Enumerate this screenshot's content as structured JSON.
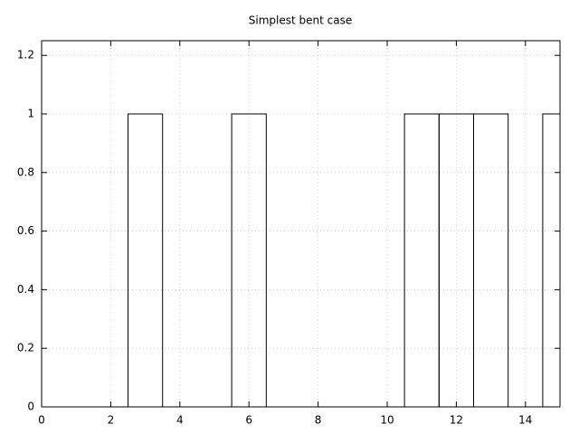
{
  "chart_data": {
    "type": "bar",
    "title": "Simplest bent case",
    "x": [
      3,
      6,
      11,
      12,
      13,
      15
    ],
    "values": [
      1,
      1,
      1,
      1,
      1,
      1
    ],
    "bar_width": 1,
    "color": "#000000",
    "xlim": [
      0,
      15
    ],
    "xticks": [
      0,
      2,
      4,
      6,
      8,
      10,
      12,
      14
    ],
    "ylim": [
      0,
      1.25
    ],
    "yticks": [
      0,
      0.2,
      0.4,
      0.6,
      0.8,
      1,
      1.2
    ],
    "grid": true
  }
}
